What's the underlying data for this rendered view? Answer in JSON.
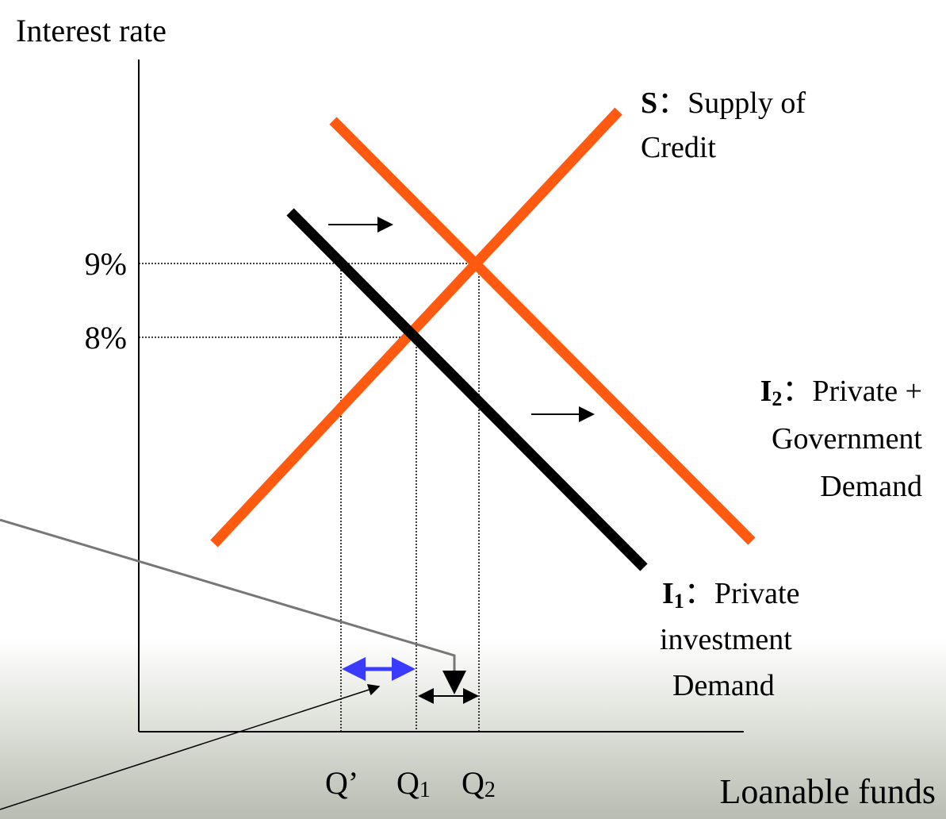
{
  "axes": {
    "y_label": "Interest rate",
    "x_label": "Loanable funds"
  },
  "rate_ticks": [
    "9%",
    "8%"
  ],
  "quantity_ticks": [
    {
      "base": "Q’"
    },
    {
      "base": "Q",
      "sub": "1"
    },
    {
      "base": "Q",
      "sub": "2"
    }
  ],
  "curves": {
    "supply": {
      "symbol": "S",
      "separator": "：",
      "lines": [
        "Supply of",
        "Credit"
      ]
    },
    "demand_2": {
      "symbol": "I",
      "sub": "2",
      "separator": "：",
      "lines": [
        "Private +",
        "Government",
        "Demand"
      ]
    },
    "demand_1": {
      "symbol": "I",
      "sub": "1",
      "separator": "：",
      "lines": [
        "Private",
        "investment",
        "Demand"
      ]
    }
  }
}
